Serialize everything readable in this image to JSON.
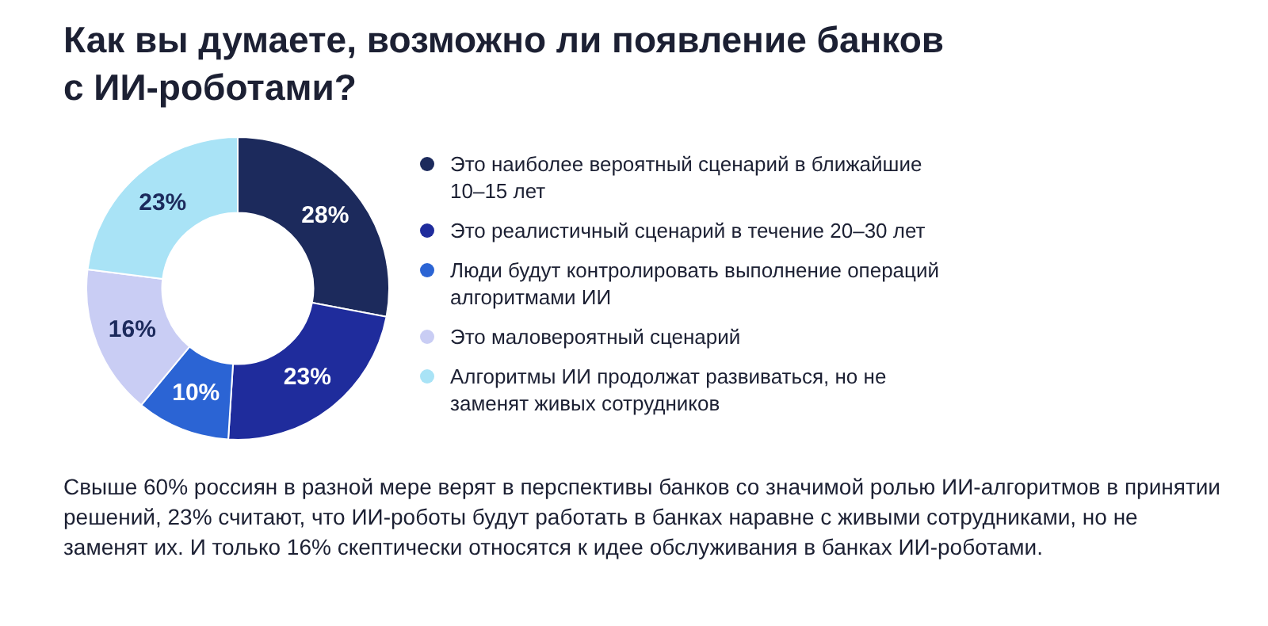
{
  "chart_data": {
    "type": "donut",
    "title": "Как вы думаете, возможно ли появление банков с ИИ-роботами?",
    "categories": [
      "Это наиболее вероятный сценарий в ближайшие 10–15 лет",
      "Это реалистичный сценарий в течение 20–30 лет",
      "Люди будут контролировать выполнение операций алгоритмами ИИ",
      "Это маловероятный сценарий",
      "Алгоритмы ИИ продолжат развиваться, но не заменят живых сотрудников"
    ],
    "values": [
      28,
      23,
      10,
      16,
      23
    ],
    "colors": [
      "#1c2a5c",
      "#1f2c9c",
      "#2b64d4",
      "#c9cdf4",
      "#a9e3f6"
    ],
    "value_labels": [
      "28%",
      "23%",
      "10%",
      "16%",
      "23%"
    ],
    "legend": "right",
    "annotations": [
      "Свыше 60% россиян в разной мере верят в перспективы банков со значимой ролью ИИ-алгоритмов в принятии решений, 23% считают, что ИИ-роботы будут работать в банках наравне с живыми сотрудниками, но не заменят их. И только 16% скептически относятся к идее обслуживания в банках ИИ-роботами."
    ]
  }
}
